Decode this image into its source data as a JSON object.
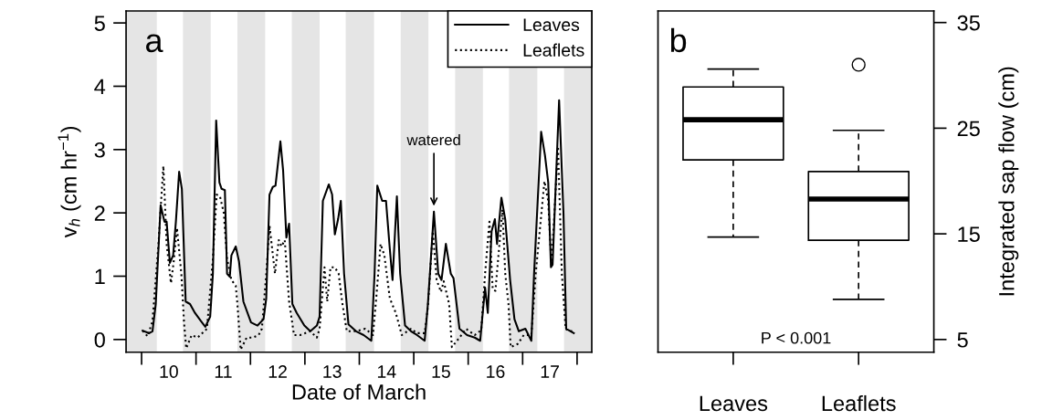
{
  "chart_data": [
    {
      "type": "line",
      "xlabel": "Date of March",
      "ylabel": "v$_{h}$ (cm hr$^{−1}$)",
      "xlim": [
        9.715,
        18.27
      ],
      "ylim": [
        -0.2,
        5.19
      ],
      "xticks": [
        {
          "value": 10,
          "label": null
        },
        {
          "value": 10.5,
          "label": "10"
        },
        {
          "value": 11,
          "label": null
        },
        {
          "value": 11.5,
          "label": "11"
        },
        {
          "value": 12,
          "label": null
        },
        {
          "value": 12.5,
          "label": "12"
        },
        {
          "value": 13,
          "label": null
        },
        {
          "value": 13.5,
          "label": "13"
        },
        {
          "value": 14,
          "label": null
        },
        {
          "value": 14.5,
          "label": "14"
        },
        {
          "value": 15,
          "label": null
        },
        {
          "value": 15.5,
          "label": "15"
        },
        {
          "value": 16,
          "label": null
        },
        {
          "value": 16.5,
          "label": "16"
        },
        {
          "value": 17,
          "label": null
        },
        {
          "value": 17.5,
          "label": "17"
        },
        {
          "value": 18,
          "label": null
        }
      ],
      "yticks": [
        0,
        1,
        2,
        3,
        4,
        5
      ],
      "legend": "top right",
      "bands": [
        {
          "axis": "x",
          "from": 9.715,
          "to": 10.28,
          "color": "#e5e5e5"
        },
        {
          "axis": "x",
          "from": 10.76,
          "to": 11.27,
          "color": "#e5e5e5"
        },
        {
          "axis": "x",
          "from": 11.76,
          "to": 12.27,
          "color": "#e5e5e5"
        },
        {
          "axis": "x",
          "from": 12.76,
          "to": 13.27,
          "color": "#e5e5e5"
        },
        {
          "axis": "x",
          "from": 13.75,
          "to": 14.27,
          "color": "#e5e5e5"
        },
        {
          "axis": "x",
          "from": 14.76,
          "to": 15.27,
          "color": "#e5e5e5"
        },
        {
          "axis": "x",
          "from": 15.76,
          "to": 16.27,
          "color": "#e5e5e5"
        },
        {
          "axis": "x",
          "from": 16.75,
          "to": 17.27,
          "color": "#e5e5e5"
        },
        {
          "axis": "x",
          "from": 17.76,
          "to": 18.27,
          "color": "#e5e5e5"
        }
      ],
      "annotations": [
        "a",
        {
          "text": "watered",
          "x": 15.37,
          "y": 2.02
        }
      ],
      "series": [
        {
          "name": "Leaves",
          "color": "#000000",
          "line_style": "solid",
          "x": [
            10.02,
            10.14,
            10.2,
            10.26,
            10.35,
            10.42,
            10.46,
            10.52,
            10.58,
            10.63,
            10.69,
            10.74,
            10.81,
            10.89,
            10.98,
            11.09,
            11.17,
            11.26,
            11.31,
            11.37,
            11.43,
            11.47,
            11.53,
            11.57,
            11.62,
            11.65,
            11.73,
            11.79,
            11.87,
            12.01,
            12.13,
            12.24,
            12.29,
            12.35,
            12.41,
            12.46,
            12.55,
            12.6,
            12.66,
            12.71,
            12.77,
            12.85,
            12.99,
            13.1,
            13.22,
            13.27,
            13.33,
            13.44,
            13.5,
            13.55,
            13.61,
            13.66,
            13.72,
            13.8,
            13.94,
            14.08,
            14.22,
            14.28,
            14.33,
            14.42,
            14.49,
            14.56,
            14.61,
            14.69,
            14.75,
            14.84,
            14.95,
            15.06,
            15.2,
            15.26,
            15.37,
            15.45,
            15.51,
            15.59,
            15.68,
            15.73,
            15.84,
            15.98,
            16.12,
            16.22,
            16.31,
            16.36,
            16.43,
            16.49,
            16.53,
            16.61,
            16.68,
            16.77,
            16.85,
            16.93,
            17.05,
            17.16,
            17.21,
            17.34,
            17.41,
            17.47,
            17.52,
            17.55,
            17.67,
            17.75,
            17.8,
            17.86,
            17.94
          ],
          "values": [
            0.14,
            0.1,
            0.13,
            0.56,
            2.12,
            1.86,
            1.86,
            1.21,
            1.33,
            1.86,
            2.65,
            2.38,
            0.6,
            0.56,
            0.42,
            0.29,
            0.2,
            0.36,
            1.04,
            3.46,
            2.48,
            2.38,
            2.36,
            1.04,
            0.99,
            1.33,
            1.47,
            1.23,
            0.6,
            0.27,
            0.22,
            0.32,
            0.65,
            2.29,
            2.41,
            2.43,
            3.13,
            2.67,
            1.61,
            1.83,
            0.56,
            0.42,
            0.22,
            0.13,
            0.22,
            0.36,
            2.19,
            2.45,
            2.29,
            1.66,
            1.9,
            2.19,
            1.04,
            0.24,
            0.13,
            0.07,
            -0.02,
            1.04,
            2.43,
            2.19,
            2.19,
            1.43,
            0.94,
            2.26,
            1.04,
            0.22,
            0.13,
            0.07,
            -0.02,
            0.56,
            2.02,
            1.04,
            0.94,
            1.51,
            1.04,
            0.97,
            0.17,
            0.07,
            0.03,
            -0.02,
            0.82,
            0.42,
            1.71,
            1.9,
            1.51,
            2.24,
            1.9,
            0.94,
            0.32,
            0.13,
            0.17,
            -0.02,
            1.04,
            3.28,
            2.91,
            2.48,
            1.14,
            1.18,
            3.78,
            2.0,
            0.17,
            0.14,
            0.1
          ]
        },
        {
          "name": "Leaflets",
          "color": "#000000",
          "line_style": "dotted",
          "x": [
            10.02,
            10.11,
            10.2,
            10.31,
            10.4,
            10.46,
            10.54,
            10.59,
            10.65,
            10.73,
            10.78,
            10.82,
            10.92,
            11.03,
            11.2,
            11.31,
            11.38,
            11.44,
            11.51,
            11.57,
            11.65,
            11.73,
            11.76,
            11.82,
            11.93,
            12.04,
            12.15,
            12.21,
            12.29,
            12.35,
            12.45,
            12.52,
            12.57,
            12.63,
            12.71,
            12.8,
            12.91,
            13.1,
            13.22,
            13.27,
            13.36,
            13.41,
            13.47,
            13.55,
            13.62,
            13.69,
            13.77,
            13.94,
            14.11,
            14.25,
            14.31,
            14.39,
            14.46,
            14.56,
            14.67,
            14.78,
            14.95,
            15.06,
            15.2,
            15.26,
            15.35,
            15.42,
            15.5,
            15.55,
            15.65,
            15.7,
            15.84,
            15.96,
            16.12,
            16.24,
            16.31,
            16.39,
            16.45,
            16.5,
            16.56,
            16.63,
            16.68,
            16.74,
            16.78,
            16.91,
            17.02,
            17.16,
            17.24,
            17.4,
            17.47,
            17.53,
            17.65,
            17.72,
            17.79,
            17.86,
            17.95
          ],
          "values": [
            0.14,
            0.05,
            0.29,
            1.51,
            2.74,
            1.51,
            0.89,
            1.23,
            1.76,
            1.04,
            0.27,
            -0.14,
            0.07,
            0.03,
            0.17,
            1.28,
            2.29,
            2.26,
            2.0,
            1.28,
            0.94,
            0.85,
            0.56,
            -0.16,
            0.03,
            0.03,
            0.07,
            0.17,
            1.04,
            1.8,
            1.04,
            1.57,
            1.47,
            1.57,
            0.6,
            0.07,
            0.07,
            0.13,
            0.03,
            0.17,
            1.14,
            0.6,
            1.14,
            1.14,
            1.04,
            0.56,
            0.13,
            0.13,
            0.17,
            0.07,
            0.65,
            1.51,
            1.33,
            0.65,
            0.42,
            0.07,
            0.17,
            0.1,
            0.1,
            0.52,
            1.71,
            0.94,
            0.75,
            0.92,
            0.56,
            -0.12,
            0.03,
            0.17,
            0.07,
            0.15,
            1.04,
            1.86,
            0.79,
            0.77,
            1.37,
            2.05,
            1.04,
            0.56,
            -0.12,
            -0.07,
            0.07,
            0.07,
            1.04,
            2.5,
            2.19,
            1.14,
            3.05,
            1.04,
            0.17,
            0.13,
            0.14
          ]
        }
      ]
    },
    {
      "type": "box",
      "categories": [
        "Leaves",
        "Leaflets"
      ],
      "ylabel": "Integrated sap flow (cm)",
      "ylim": [
        3.8,
        36.1
      ],
      "yticks": [
        5,
        15,
        25,
        35
      ],
      "annotations": [
        "b",
        "P < 0.001"
      ],
      "boxes": [
        {
          "low": 14.7,
          "q1": 22.0,
          "median": 25.8,
          "q3": 28.9,
          "high": 30.6
        },
        {
          "low": 8.8,
          "q1": 14.4,
          "median": 18.3,
          "q3": 20.9,
          "high": 24.8,
          "outliers": [
            31.0
          ]
        }
      ]
    }
  ]
}
